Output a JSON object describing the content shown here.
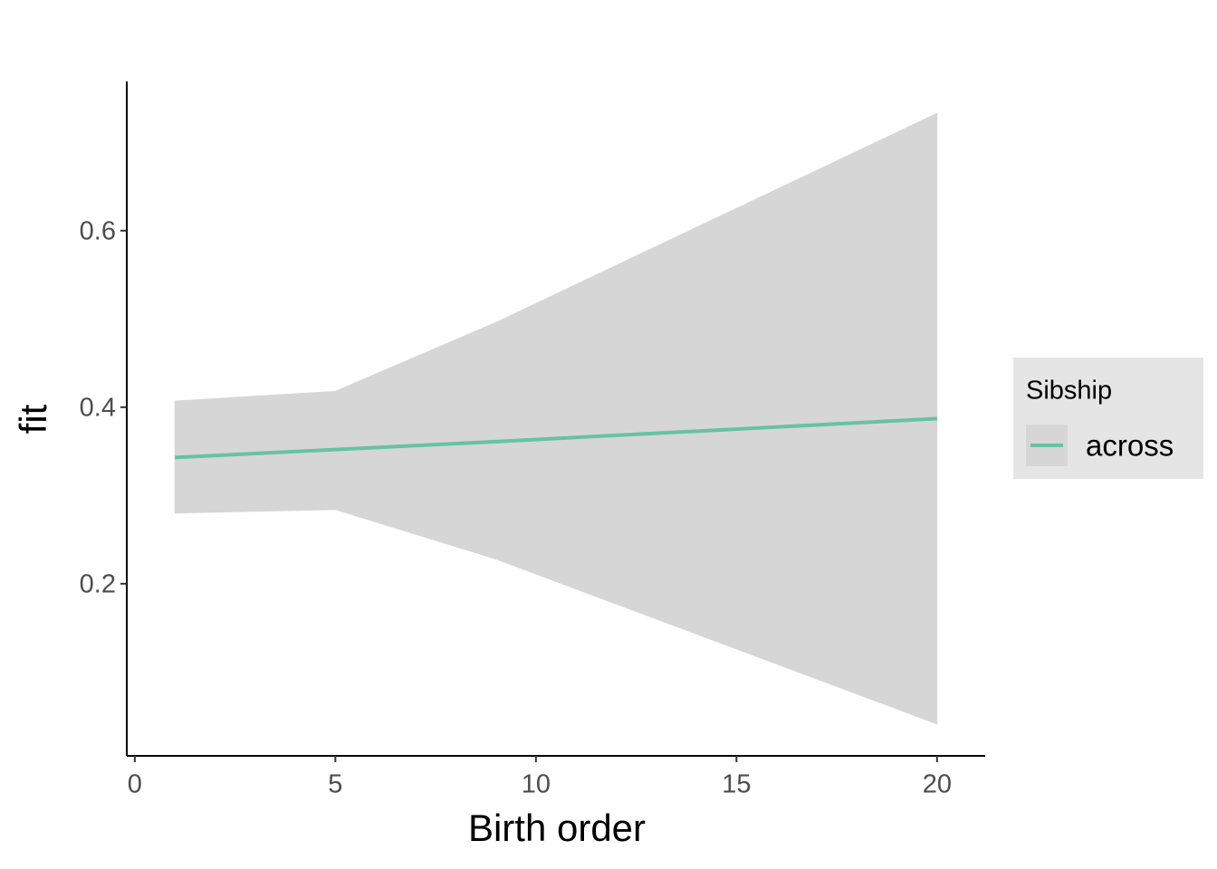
{
  "chart_data": {
    "type": "line",
    "x_label": "Birth order",
    "y_label": "fit",
    "xlim": [
      -0.2,
      21.2
    ],
    "xticks": [
      0,
      5,
      10,
      15,
      20
    ],
    "ylim": [
      0.005,
      0.769
    ],
    "yticks": [
      0.2,
      0.4,
      0.6
    ],
    "legend_title": "Sibship",
    "legend_position": "right",
    "ribbon_color": "#d6d6d6",
    "x": [
      1,
      5,
      9,
      20
    ],
    "series": [
      {
        "name": "across",
        "color": "#66c2a5",
        "values": [
          0.343,
          0.352,
          0.361,
          0.387
        ],
        "lower": [
          0.28,
          0.284,
          0.228,
          0.041
        ],
        "upper": [
          0.407,
          0.418,
          0.496,
          0.733
        ]
      }
    ]
  }
}
